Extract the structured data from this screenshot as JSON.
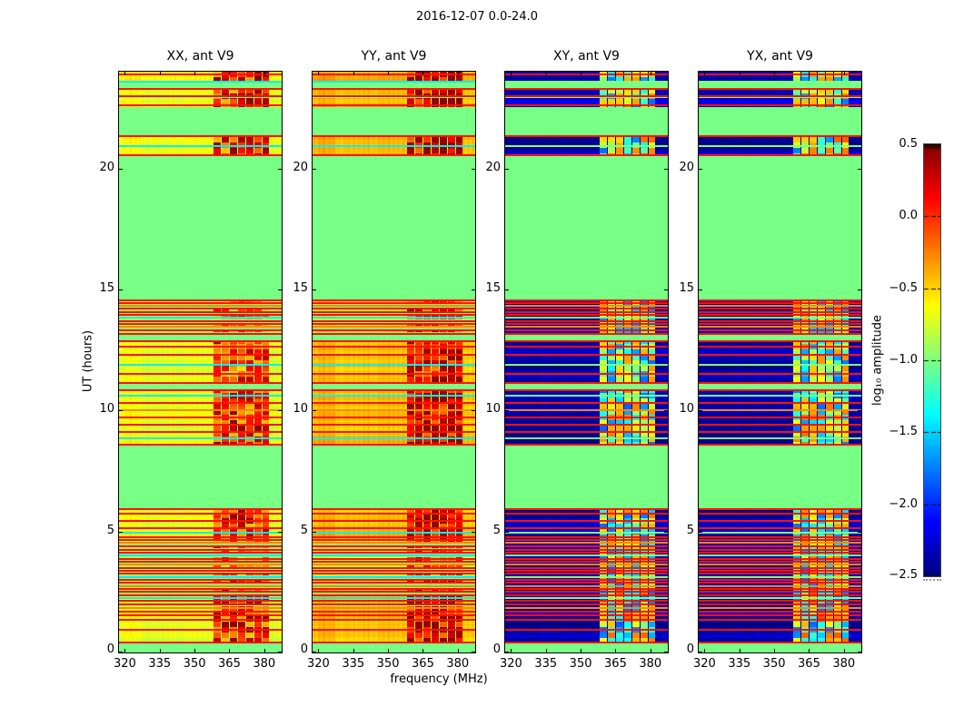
{
  "chart_data": {
    "type": "heatmap",
    "title": "2016-12-07 0.0-24.0",
    "xlabel": "frequency (MHz)",
    "ylabel": "UT (hours)",
    "panels": [
      {
        "label": "XX, ant V9"
      },
      {
        "label": "YY, ant V9"
      },
      {
        "label": "XY, ant V9"
      },
      {
        "label": "YX, ant V9"
      }
    ],
    "x_ticks": [
      320,
      335,
      350,
      365,
      380
    ],
    "x_range": [
      317.5,
      387.5
    ],
    "y_ticks": [
      0,
      5,
      10,
      15,
      20
    ],
    "y_range": [
      0,
      24
    ],
    "colorbar": {
      "label": "log₁₀ amplitude",
      "ticks": [
        "0.5",
        "0.0",
        "−0.5",
        "−1.0",
        "−1.5",
        "−2.0",
        "−2.5"
      ],
      "range": [
        -2.5,
        0.5
      ],
      "colormap": "jet",
      "position": "right"
    },
    "quiet_value": -1.0,
    "cross_base_value": -2.38,
    "rfi_band_mhz": [
      358,
      382
    ],
    "panel_offsets": [
      0,
      0.25,
      0,
      0.04
    ],
    "bands": [
      [
        0.42,
        1.5,
        -0.66,
        0,
        0.55
      ],
      [
        1.5,
        2.62,
        -0.7,
        1,
        0.5
      ],
      [
        2.62,
        4.62,
        -0.85,
        2,
        0.4
      ],
      [
        4.62,
        5.95,
        -0.7,
        0,
        0.45
      ],
      [
        8.55,
        10.85,
        -0.7,
        0,
        0.4
      ],
      [
        11.1,
        12.88,
        -0.72,
        0,
        0.35
      ],
      [
        13.15,
        14.55,
        -0.85,
        2,
        0.35
      ],
      [
        20.5,
        21.35,
        -0.64,
        0,
        0.55
      ],
      [
        22.55,
        22.9,
        -0.68,
        0,
        0.5
      ],
      [
        23.0,
        23.32,
        -0.68,
        0,
        0.5
      ],
      [
        23.55,
        24.0,
        -0.66,
        0,
        0.5
      ]
    ],
    "scan_lines": [
      [
        0.42,
        "r"
      ],
      [
        0.95,
        "r"
      ],
      [
        1.35,
        "r"
      ],
      [
        1.55,
        "r"
      ],
      [
        1.7,
        "r"
      ],
      [
        1.85,
        "o"
      ],
      [
        2.0,
        "r"
      ],
      [
        2.12,
        "r"
      ],
      [
        2.25,
        "g"
      ],
      [
        2.38,
        "r"
      ],
      [
        2.5,
        "r"
      ],
      [
        2.62,
        "r"
      ],
      [
        2.75,
        "o"
      ],
      [
        2.88,
        "r"
      ],
      [
        3.0,
        "r"
      ],
      [
        3.12,
        "g"
      ],
      [
        3.25,
        "r"
      ],
      [
        3.38,
        "r"
      ],
      [
        3.5,
        "r"
      ],
      [
        3.62,
        "o"
      ],
      [
        3.75,
        "r"
      ],
      [
        3.88,
        "r"
      ],
      [
        4.0,
        "g"
      ],
      [
        4.12,
        "r"
      ],
      [
        4.25,
        "r"
      ],
      [
        4.38,
        "r"
      ],
      [
        4.52,
        "o"
      ],
      [
        4.65,
        "r"
      ],
      [
        4.78,
        "r"
      ],
      [
        4.95,
        "g"
      ],
      [
        5.15,
        "r"
      ],
      [
        5.45,
        "r"
      ],
      [
        5.72,
        "r"
      ],
      [
        5.92,
        "r"
      ],
      [
        8.58,
        "r"
      ],
      [
        8.85,
        "g"
      ],
      [
        9.1,
        "r"
      ],
      [
        9.4,
        "r"
      ],
      [
        9.7,
        "r"
      ],
      [
        10.0,
        "o"
      ],
      [
        10.3,
        "r"
      ],
      [
        10.6,
        "g"
      ],
      [
        10.85,
        "r"
      ],
      [
        11.12,
        "r"
      ],
      [
        11.5,
        "r"
      ],
      [
        11.9,
        "g"
      ],
      [
        12.3,
        "r"
      ],
      [
        12.62,
        "r"
      ],
      [
        12.88,
        "r"
      ],
      [
        13.18,
        "r"
      ],
      [
        13.32,
        "r"
      ],
      [
        13.45,
        "o"
      ],
      [
        13.58,
        "r"
      ],
      [
        13.7,
        "r"
      ],
      [
        13.82,
        "g"
      ],
      [
        13.95,
        "r"
      ],
      [
        14.08,
        "r"
      ],
      [
        14.2,
        "r"
      ],
      [
        14.32,
        "o"
      ],
      [
        14.45,
        "r"
      ],
      [
        14.55,
        "r"
      ],
      [
        20.55,
        "r"
      ],
      [
        20.92,
        "g"
      ],
      [
        21.33,
        "r"
      ],
      [
        22.6,
        "r"
      ],
      [
        23.0,
        "r"
      ],
      [
        23.3,
        "r"
      ],
      [
        23.6,
        "g"
      ],
      [
        23.88,
        "r"
      ]
    ]
  }
}
